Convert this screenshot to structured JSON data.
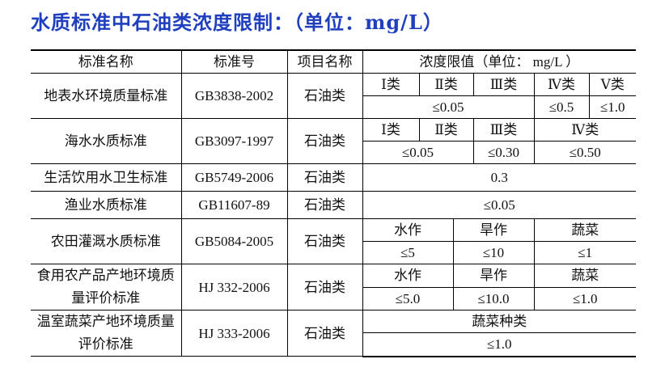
{
  "title": "水质标准中石油类浓度限制：（单位：mg/L）",
  "table": {
    "header": [
      "标准名称",
      "标准号",
      "项目名称",
      "浓度限值（单位：   mg/L  ）"
    ],
    "rows": [
      {
        "name": "地表水环境质量标准",
        "code": "GB3838-2002",
        "item": "石油类",
        "classes": [
          "Ⅰ类",
          "Ⅱ类",
          "Ⅲ类",
          "Ⅳ类",
          "Ⅴ类"
        ],
        "limits": [
          "≤0.05",
          "≤0.5",
          "≤1.0"
        ]
      },
      {
        "name": "海水水质标准",
        "code": "GB3097-1997",
        "item": "石油类",
        "classes": [
          "Ⅰ类",
          "Ⅱ类",
          "Ⅲ类",
          "Ⅳ类"
        ],
        "limits": [
          "≤0.05",
          "≤0.30",
          "≤0.50"
        ]
      },
      {
        "name": "生活饮用水卫生标准",
        "code": "GB5749-2006",
        "item": "石油类",
        "limits": [
          "0.3"
        ]
      },
      {
        "name": "渔业水质标准",
        "code": "GB11607-89",
        "item": "石油类",
        "limits": [
          "≤0.05"
        ]
      },
      {
        "name": "农田灌溉水质标准",
        "code": "GB5084-2005",
        "item": "石油类",
        "classes": [
          "水作",
          "旱作",
          "蔬菜"
        ],
        "limits": [
          "≤5",
          "≤10",
          "≤1"
        ]
      },
      {
        "name": "食用农产品产地环境质量评价标准",
        "code": "HJ 332-2006",
        "item": "石油类",
        "classes": [
          "水作",
          "旱作",
          "蔬菜"
        ],
        "limits": [
          "≤5.0",
          "≤10.0",
          "≤1.0"
        ]
      },
      {
        "name": "温室蔬菜产地环境质量评价标准",
        "code": "HJ 333-2006",
        "item": "石油类",
        "classes": [
          "蔬菜种类"
        ],
        "limits": [
          "≤1.0"
        ]
      }
    ]
  }
}
